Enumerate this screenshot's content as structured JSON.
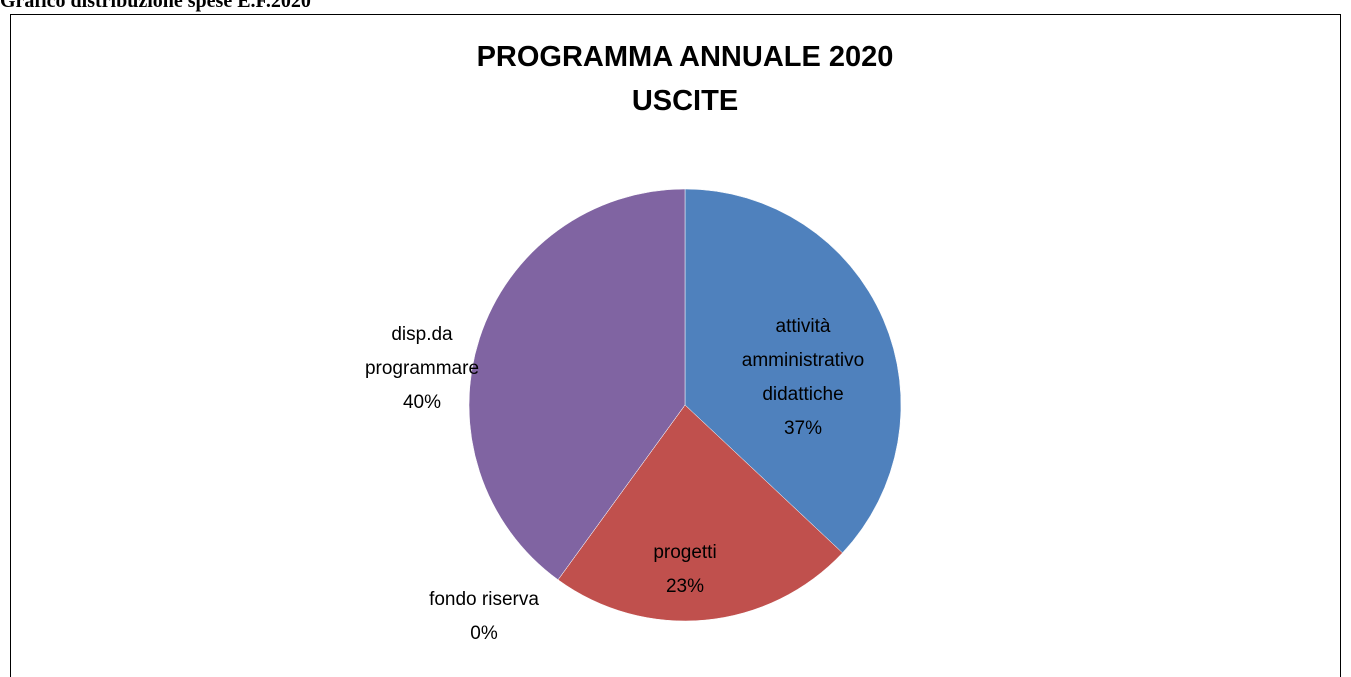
{
  "header": "Grafico distribuzione spese E.F.2020",
  "chart_data": {
    "type": "pie",
    "title": [
      "PROGRAMMA ANNUALE  2020",
      "USCITE"
    ],
    "categories": [
      "attività amministrativo didattiche",
      "progetti",
      "fondo riserva",
      "disp.da programmare"
    ],
    "values": [
      37,
      23,
      0,
      40
    ],
    "value_labels": [
      "37%",
      "23%",
      "0%",
      "40%"
    ],
    "colors": [
      "#4f81bd",
      "#c0504d",
      "#9bbb59",
      "#8064a2"
    ]
  }
}
